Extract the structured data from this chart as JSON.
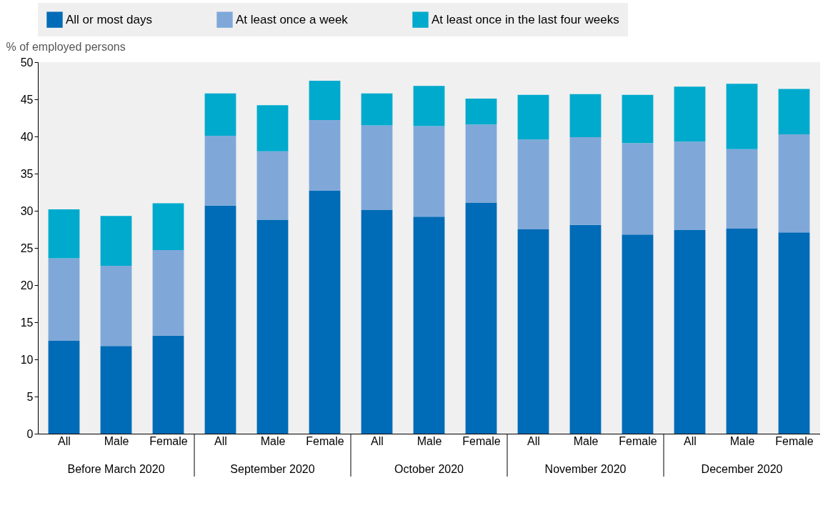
{
  "chart_data": {
    "type": "bar",
    "stacked": true,
    "ylabel": "% of employed persons",
    "categories": [
      "All",
      "Male",
      "Female",
      "All",
      "Male",
      "Female",
      "All",
      "Male",
      "Female",
      "All",
      "Male",
      "Female",
      "All",
      "Male",
      "Female"
    ],
    "annotations": [
      "Before March 2020",
      "September 2020",
      "October 2020",
      "November 2020",
      "December 2020"
    ],
    "series": [
      {
        "name": "All or most days",
        "color": "#006bb6",
        "values": [
          12.5,
          11.8,
          13.2,
          30.7,
          28.8,
          32.7,
          30.1,
          29.2,
          31.1,
          27.5,
          28.1,
          26.8,
          27.4,
          27.6,
          27.1
        ]
      },
      {
        "name": "At least once a week",
        "color": "#7fa8d9",
        "values": [
          11.1,
          10.8,
          11.5,
          9.4,
          9.2,
          9.5,
          11.4,
          12.2,
          10.5,
          12.1,
          11.8,
          12.3,
          11.9,
          10.7,
          13.2
        ]
      },
      {
        "name": "At least once in the last four weeks",
        "color": "#00aacc",
        "values": [
          6.6,
          6.7,
          6.3,
          5.7,
          6.2,
          5.3,
          4.3,
          5.4,
          3.5,
          6.0,
          5.8,
          6.5,
          7.4,
          8.8,
          6.1
        ]
      }
    ],
    "ylim": [
      0,
      50
    ],
    "yticks": [
      0,
      5,
      10,
      15,
      20,
      25,
      30,
      35,
      40,
      45,
      50
    ],
    "grid": false,
    "legend": "top"
  }
}
